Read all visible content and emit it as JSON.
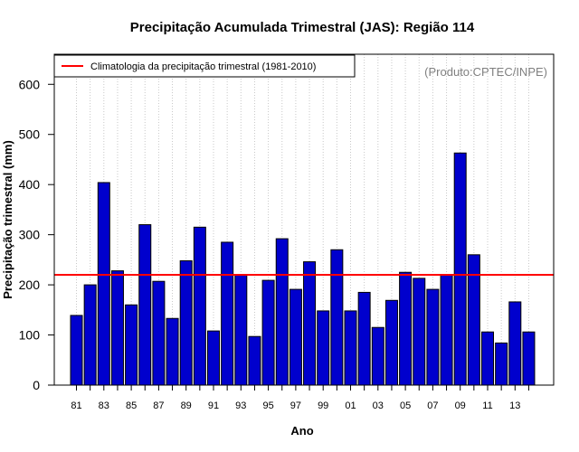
{
  "chart_data": {
    "type": "bar",
    "title": "Precipitação Acumulada Trimestral (JAS): Região 114",
    "xlabel": "Ano",
    "ylabel": "Precipitação trimestral (mm)",
    "ylim": [
      0,
      660
    ],
    "yticks": [
      0,
      100,
      200,
      300,
      400,
      500,
      600
    ],
    "categories": [
      "1981",
      "1982",
      "1983",
      "1984",
      "1985",
      "1986",
      "1987",
      "1988",
      "1989",
      "1990",
      "1991",
      "1992",
      "1993",
      "1994",
      "1995",
      "1996",
      "1997",
      "1998",
      "1999",
      "2000",
      "2001",
      "2002",
      "2003",
      "2004",
      "2005",
      "2006",
      "2007",
      "2008",
      "2009",
      "2010",
      "2011",
      "2012",
      "2013",
      "2014"
    ],
    "tick_labels": [
      "81",
      "",
      "83",
      "",
      "85",
      "",
      "87",
      "",
      "89",
      "",
      "91",
      "",
      "93",
      "",
      "95",
      "",
      "97",
      "",
      "99",
      "",
      "01",
      "",
      "03",
      "",
      "05",
      "",
      "07",
      "",
      "09",
      "",
      "11",
      "",
      "13",
      ""
    ],
    "values": [
      139,
      200,
      404,
      228,
      160,
      320,
      207,
      133,
      248,
      315,
      108,
      285,
      219,
      97,
      209,
      292,
      191,
      246,
      148,
      270,
      148,
      185,
      115,
      169,
      225,
      213,
      191,
      219,
      463,
      260,
      106,
      84,
      166,
      106
    ],
    "bar_color": "#0000CD",
    "climatology": {
      "label": "Climatologia da precipitação trimestral (1981-2010)",
      "value": 220,
      "color": "#FF0000"
    },
    "legend_position": "top-left",
    "grid": "vertical-dotted",
    "credit": "(Produto:CPTEC/INPE)"
  }
}
